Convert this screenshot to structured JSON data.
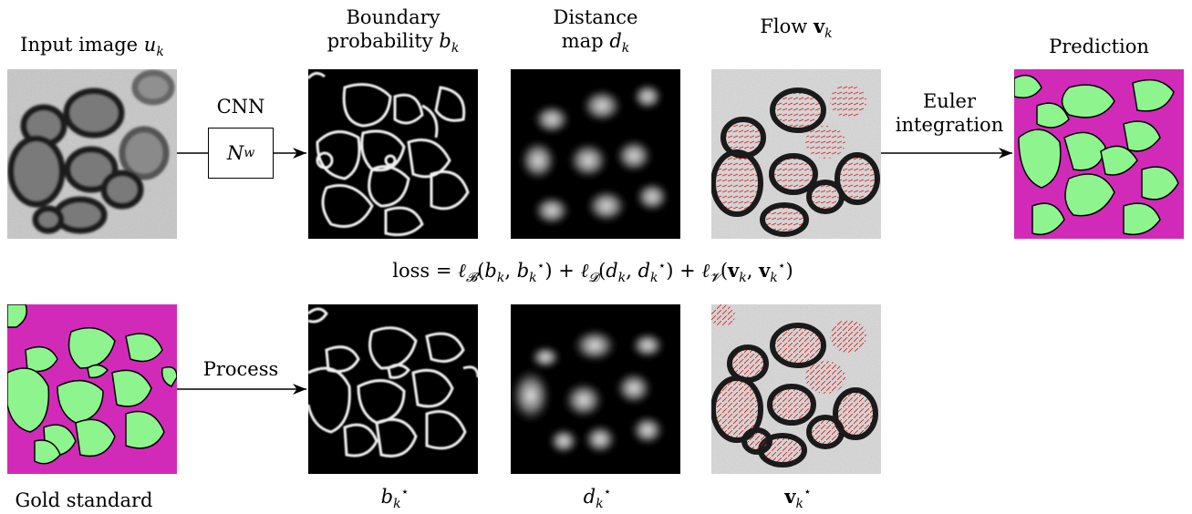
{
  "top_labels": {
    "input": "Input image",
    "input_sym": "u",
    "input_sub": "k",
    "boundary_line1": "Boundary",
    "boundary_line2": "probability",
    "boundary_sym": "b",
    "boundary_sub": "k",
    "distance_line1": "Distance",
    "distance_line2": "map",
    "distance_sym": "d",
    "distance_sub": "k",
    "flow": "Flow",
    "flow_sym": "v",
    "flow_sub": "k",
    "prediction": "Prediction"
  },
  "edges": {
    "cnn": "CNN",
    "net_sym": "N",
    "net_sub": "w",
    "euler_line1": "Euler",
    "euler_line2": "integration",
    "process": "Process"
  },
  "loss": "loss = ℓᴮ(bₖ, bₖ⋆) + ℓᴰ(dₖ, dₖ⋆) + ℓᵛ(vₖ, vₖ⋆)",
  "bottom_labels": {
    "gold": "Gold standard",
    "b_star": "b",
    "d_star": "d",
    "v_star": "v",
    "sub": "k",
    "star": "⋆"
  },
  "colors": {
    "cell": "#8ef58e",
    "background": "#d22ab8",
    "flow_arrow": "#e01010"
  }
}
